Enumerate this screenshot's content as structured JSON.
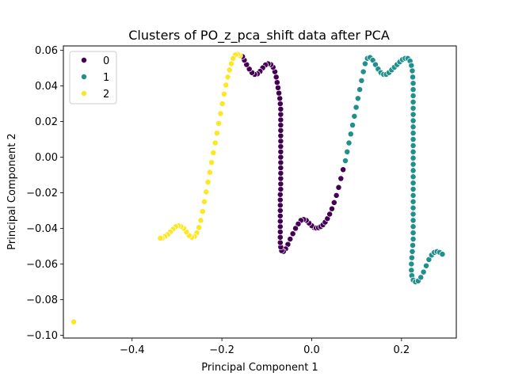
{
  "chart_data": {
    "type": "scatter",
    "title": "Clusters of PO_z_pca_shift data after PCA",
    "xlabel": "Principal Component 1",
    "ylabel": "Principal Component 2",
    "xlim": [
      -0.553,
      0.322
    ],
    "ylim": [
      -0.1016,
      0.0625
    ],
    "xticks": [
      -0.4,
      -0.2,
      0.0,
      0.2
    ],
    "xtick_labels": [
      "−0.4",
      "−0.2",
      "0.0",
      "0.2"
    ],
    "yticks": [
      -0.1,
      -0.08,
      -0.06,
      -0.04,
      -0.02,
      0.0,
      0.02,
      0.04,
      0.06
    ],
    "ytick_labels": [
      "−0.10",
      "−0.08",
      "−0.06",
      "−0.04",
      "−0.02",
      "0.00",
      "0.02",
      "0.04",
      "0.06"
    ],
    "grid": false,
    "legend_position": "top-left",
    "series": [
      {
        "name": "0",
        "color": "#440154",
        "points": [
          [
            0.005,
            -0.0395
          ],
          [
            0.0,
            -0.0385
          ],
          [
            -0.006,
            -0.037
          ],
          [
            -0.012,
            -0.0355
          ],
          [
            -0.018,
            -0.035
          ],
          [
            -0.024,
            -0.0355
          ],
          [
            -0.03,
            -0.0375
          ],
          [
            -0.036,
            -0.04
          ],
          [
            -0.042,
            -0.043
          ],
          [
            -0.048,
            -0.046
          ],
          [
            -0.053,
            -0.049
          ],
          [
            -0.058,
            -0.0515
          ],
          [
            -0.063,
            -0.053
          ],
          [
            -0.067,
            -0.0525
          ],
          [
            -0.069,
            -0.0505
          ],
          [
            -0.07,
            -0.048
          ],
          [
            -0.07,
            -0.045
          ],
          [
            -0.07,
            -0.042
          ],
          [
            -0.07,
            -0.039
          ],
          [
            -0.07,
            -0.036
          ],
          [
            -0.07,
            -0.033
          ],
          [
            -0.07,
            -0.03
          ],
          [
            -0.07,
            -0.027
          ],
          [
            -0.07,
            -0.024
          ],
          [
            -0.07,
            -0.021
          ],
          [
            -0.069,
            -0.018
          ],
          [
            -0.069,
            -0.015
          ],
          [
            -0.069,
            -0.012
          ],
          [
            -0.069,
            -0.009
          ],
          [
            -0.069,
            -0.006
          ],
          [
            -0.069,
            -0.003
          ],
          [
            -0.069,
            0.0
          ],
          [
            -0.069,
            0.003
          ],
          [
            -0.069,
            0.006
          ],
          [
            -0.069,
            0.009
          ],
          [
            -0.069,
            0.012
          ],
          [
            -0.069,
            0.015
          ],
          [
            -0.069,
            0.018
          ],
          [
            -0.069,
            0.021
          ],
          [
            -0.069,
            0.024
          ],
          [
            -0.069,
            0.027
          ],
          [
            -0.07,
            0.03
          ],
          [
            -0.071,
            0.033
          ],
          [
            -0.073,
            0.036
          ],
          [
            -0.075,
            0.039
          ],
          [
            -0.077,
            0.042
          ],
          [
            -0.079,
            0.045
          ],
          [
            -0.082,
            0.048
          ],
          [
            -0.086,
            0.0505
          ],
          [
            -0.091,
            0.052
          ],
          [
            -0.097,
            0.0525
          ],
          [
            -0.103,
            0.0518
          ],
          [
            -0.109,
            0.0502
          ],
          [
            -0.115,
            0.0482
          ],
          [
            -0.121,
            0.0468
          ],
          [
            -0.127,
            0.0465
          ],
          [
            -0.133,
            0.0475
          ],
          [
            -0.139,
            0.0495
          ],
          [
            -0.145,
            0.052
          ],
          [
            -0.15,
            0.0545
          ],
          [
            -0.154,
            0.0565
          ],
          [
            0.01,
            -0.0398
          ],
          [
            0.015,
            -0.0396
          ],
          [
            0.02,
            -0.039
          ],
          [
            0.025,
            -0.038
          ],
          [
            0.03,
            -0.0365
          ],
          [
            0.035,
            -0.0345
          ],
          [
            0.04,
            -0.032
          ],
          [
            0.045,
            -0.029
          ],
          [
            0.05,
            -0.0255
          ],
          [
            0.055,
            -0.0215
          ],
          [
            0.06,
            -0.017
          ],
          [
            0.065,
            -0.012
          ],
          [
            0.07,
            -0.007
          ]
        ]
      },
      {
        "name": "1",
        "color": "#21908d",
        "points": [
          [
            0.075,
            -0.002
          ],
          [
            0.079,
            0.003
          ],
          [
            0.083,
            0.008
          ],
          [
            0.087,
            0.013
          ],
          [
            0.091,
            0.018
          ],
          [
            0.095,
            0.023
          ],
          [
            0.099,
            0.028
          ],
          [
            0.103,
            0.033
          ],
          [
            0.107,
            0.038
          ],
          [
            0.111,
            0.043
          ],
          [
            0.115,
            0.048
          ],
          [
            0.119,
            0.0525
          ],
          [
            0.124,
            0.0555
          ],
          [
            0.13,
            0.056
          ],
          [
            0.136,
            0.0545
          ],
          [
            0.142,
            0.052
          ],
          [
            0.148,
            0.0495
          ],
          [
            0.154,
            0.0475
          ],
          [
            0.16,
            0.0465
          ],
          [
            0.166,
            0.0465
          ],
          [
            0.172,
            0.0475
          ],
          [
            0.178,
            0.049
          ],
          [
            0.184,
            0.0505
          ],
          [
            0.19,
            0.052
          ],
          [
            0.196,
            0.0535
          ],
          [
            0.202,
            0.0548
          ],
          [
            0.208,
            0.0555
          ],
          [
            0.214,
            0.0555
          ],
          [
            0.219,
            0.054
          ],
          [
            0.222,
            0.0515
          ],
          [
            0.224,
            0.0485
          ],
          [
            0.225,
            0.045
          ],
          [
            0.226,
            0.0415
          ],
          [
            0.226,
            0.038
          ],
          [
            0.226,
            0.0345
          ],
          [
            0.226,
            0.031
          ],
          [
            0.226,
            0.0275
          ],
          [
            0.226,
            0.024
          ],
          [
            0.226,
            0.0205
          ],
          [
            0.226,
            0.017
          ],
          [
            0.226,
            0.0135
          ],
          [
            0.226,
            0.01
          ],
          [
            0.226,
            0.0065
          ],
          [
            0.226,
            0.003
          ],
          [
            0.226,
            -0.0005
          ],
          [
            0.226,
            -0.004
          ],
          [
            0.226,
            -0.0075
          ],
          [
            0.226,
            -0.011
          ],
          [
            0.226,
            -0.0145
          ],
          [
            0.226,
            -0.018
          ],
          [
            0.226,
            -0.0215
          ],
          [
            0.226,
            -0.025
          ],
          [
            0.226,
            -0.0285
          ],
          [
            0.226,
            -0.032
          ],
          [
            0.226,
            -0.0355
          ],
          [
            0.226,
            -0.039
          ],
          [
            0.226,
            -0.0425
          ],
          [
            0.226,
            -0.046
          ],
          [
            0.225,
            -0.0495
          ],
          [
            0.224,
            -0.053
          ],
          [
            0.223,
            -0.0565
          ],
          [
            0.222,
            -0.06
          ],
          [
            0.222,
            -0.0635
          ],
          [
            0.223,
            -0.0665
          ],
          [
            0.226,
            -0.069
          ],
          [
            0.231,
            -0.07
          ],
          [
            0.237,
            -0.0695
          ],
          [
            0.243,
            -0.0675
          ],
          [
            0.249,
            -0.0645
          ],
          [
            0.255,
            -0.061
          ],
          [
            0.261,
            -0.0575
          ],
          [
            0.267,
            -0.055
          ],
          [
            0.273,
            -0.0535
          ],
          [
            0.279,
            -0.053
          ],
          [
            0.285,
            -0.0535
          ],
          [
            0.291,
            -0.0545
          ]
        ]
      },
      {
        "name": "2",
        "color": "#fde725",
        "points": [
          [
            -0.16,
            0.057
          ],
          [
            -0.165,
            0.0578
          ],
          [
            -0.17,
            0.0575
          ],
          [
            -0.175,
            0.0555
          ],
          [
            -0.179,
            0.0525
          ],
          [
            -0.183,
            0.049
          ],
          [
            -0.187,
            0.045
          ],
          [
            -0.191,
            0.0405
          ],
          [
            -0.195,
            0.0355
          ],
          [
            -0.199,
            0.03
          ],
          [
            -0.203,
            0.0245
          ],
          [
            -0.207,
            0.019
          ],
          [
            -0.211,
            0.0135
          ],
          [
            -0.215,
            0.008
          ],
          [
            -0.219,
            0.0025
          ],
          [
            -0.223,
            -0.003
          ],
          [
            -0.227,
            -0.0085
          ],
          [
            -0.231,
            -0.014
          ],
          [
            -0.235,
            -0.0195
          ],
          [
            -0.239,
            -0.025
          ],
          [
            -0.243,
            -0.0305
          ],
          [
            -0.247,
            -0.0355
          ],
          [
            -0.251,
            -0.0395
          ],
          [
            -0.256,
            -0.0425
          ],
          [
            -0.261,
            -0.0445
          ],
          [
            -0.267,
            -0.045
          ],
          [
            -0.273,
            -0.044
          ],
          [
            -0.279,
            -0.042
          ],
          [
            -0.285,
            -0.04
          ],
          [
            -0.291,
            -0.039
          ],
          [
            -0.297,
            -0.0385
          ],
          [
            -0.303,
            -0.039
          ],
          [
            -0.309,
            -0.0405
          ],
          [
            -0.315,
            -0.042
          ],
          [
            -0.321,
            -0.0435
          ],
          [
            -0.327,
            -0.0445
          ],
          [
            -0.333,
            -0.0455
          ],
          [
            -0.337,
            -0.0455
          ],
          [
            -0.53,
            -0.0925
          ]
        ]
      }
    ]
  }
}
